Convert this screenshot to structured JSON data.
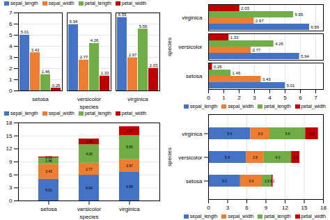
{
  "chart_data": [
    {
      "type": "bar",
      "categories": [
        "setosa",
        "versicolor",
        "virginica"
      ],
      "series": [
        {
          "name": "sepal_length",
          "color": "#4472c4",
          "values": [
            5.01,
            5.94,
            6.59
          ]
        },
        {
          "name": "sepal_width",
          "color": "#ed7d31",
          "values": [
            3.43,
            2.77,
            2.97
          ]
        },
        {
          "name": "petal_length",
          "color": "#70ad47",
          "values": [
            1.46,
            4.26,
            5.55
          ]
        },
        {
          "name": "petal_width",
          "color": "#c00000",
          "values": [
            0.25,
            1.33,
            2.03
          ]
        }
      ],
      "xlabel": "species",
      "ylim": [
        0,
        7
      ],
      "yticks": [
        0,
        1,
        2,
        3,
        4,
        5,
        6,
        7
      ],
      "grid": true,
      "legend": "upper left",
      "data_labels": true
    },
    {
      "type": "bar",
      "orientation": "horizontal",
      "categories": [
        "setosa",
        "versicolor",
        "virginica"
      ],
      "series": [
        {
          "name": "sepal_length",
          "color": "#4472c4",
          "values": [
            5.01,
            5.94,
            6.59
          ]
        },
        {
          "name": "sepal_width",
          "color": "#ed7d31",
          "values": [
            3.43,
            2.77,
            2.97
          ]
        },
        {
          "name": "petal_length",
          "color": "#70ad47",
          "values": [
            1.46,
            4.26,
            5.55
          ]
        },
        {
          "name": "petal_width",
          "color": "#c00000",
          "values": [
            0.25,
            1.33,
            2.03
          ]
        }
      ],
      "ylabel": "species",
      "xlim": [
        0,
        7.5
      ],
      "xticks": [
        0,
        1,
        2,
        3,
        4,
        5,
        6,
        7
      ],
      "grid": true,
      "legend": "lower right",
      "data_labels": true
    },
    {
      "type": "bar",
      "stacked": true,
      "categories": [
        "setosa",
        "versicolor",
        "virginica"
      ],
      "series": [
        {
          "name": "sepal_length",
          "color": "#4472c4",
          "values": [
            5.01,
            5.94,
            6.59
          ]
        },
        {
          "name": "sepal_width",
          "color": "#ed7d31",
          "values": [
            3.43,
            2.77,
            2.97
          ]
        },
        {
          "name": "petal_length",
          "color": "#70ad47",
          "values": [
            1.46,
            4.26,
            5.55
          ]
        },
        {
          "name": "petal_width",
          "color": "#c00000",
          "values": [
            0.25,
            1.33,
            2.03
          ]
        }
      ],
      "xlabel": "species",
      "ylim": [
        0,
        18
      ],
      "yticks": [
        0,
        3,
        6,
        9,
        12,
        15,
        18
      ],
      "grid": true,
      "legend": "upper left",
      "data_labels": true
    },
    {
      "type": "bar",
      "stacked": true,
      "orientation": "horizontal",
      "categories": [
        "setosa",
        "versicolor",
        "virginica"
      ],
      "series": [
        {
          "name": "sepal_length",
          "color": "#4472c4",
          "values": [
            5.0,
            5.9,
            6.6
          ],
          "value_labels": [
            "5.0",
            "5.9",
            "6.6"
          ]
        },
        {
          "name": "sepal_width",
          "color": "#ed7d31",
          "values": [
            3.4,
            2.8,
            3.0
          ],
          "value_labels": [
            "3.4",
            "2.8",
            "3.0"
          ]
        },
        {
          "name": "petal_length",
          "color": "#70ad47",
          "values": [
            1.5,
            4.3,
            5.6
          ],
          "value_labels": [
            "1.5",
            "4.3",
            "5.6"
          ]
        },
        {
          "name": "petal_width",
          "color": "#c00000",
          "values": [
            0.2,
            1.3,
            2.0
          ],
          "value_labels": [
            "0.2",
            "1.3",
            "2.0"
          ]
        }
      ],
      "ylabel": "species",
      "xlim": [
        0,
        18
      ],
      "xticks": [
        0,
        3,
        6,
        9,
        12,
        15,
        18
      ],
      "grid": true,
      "legend": "lower right",
      "data_labels": true
    }
  ]
}
